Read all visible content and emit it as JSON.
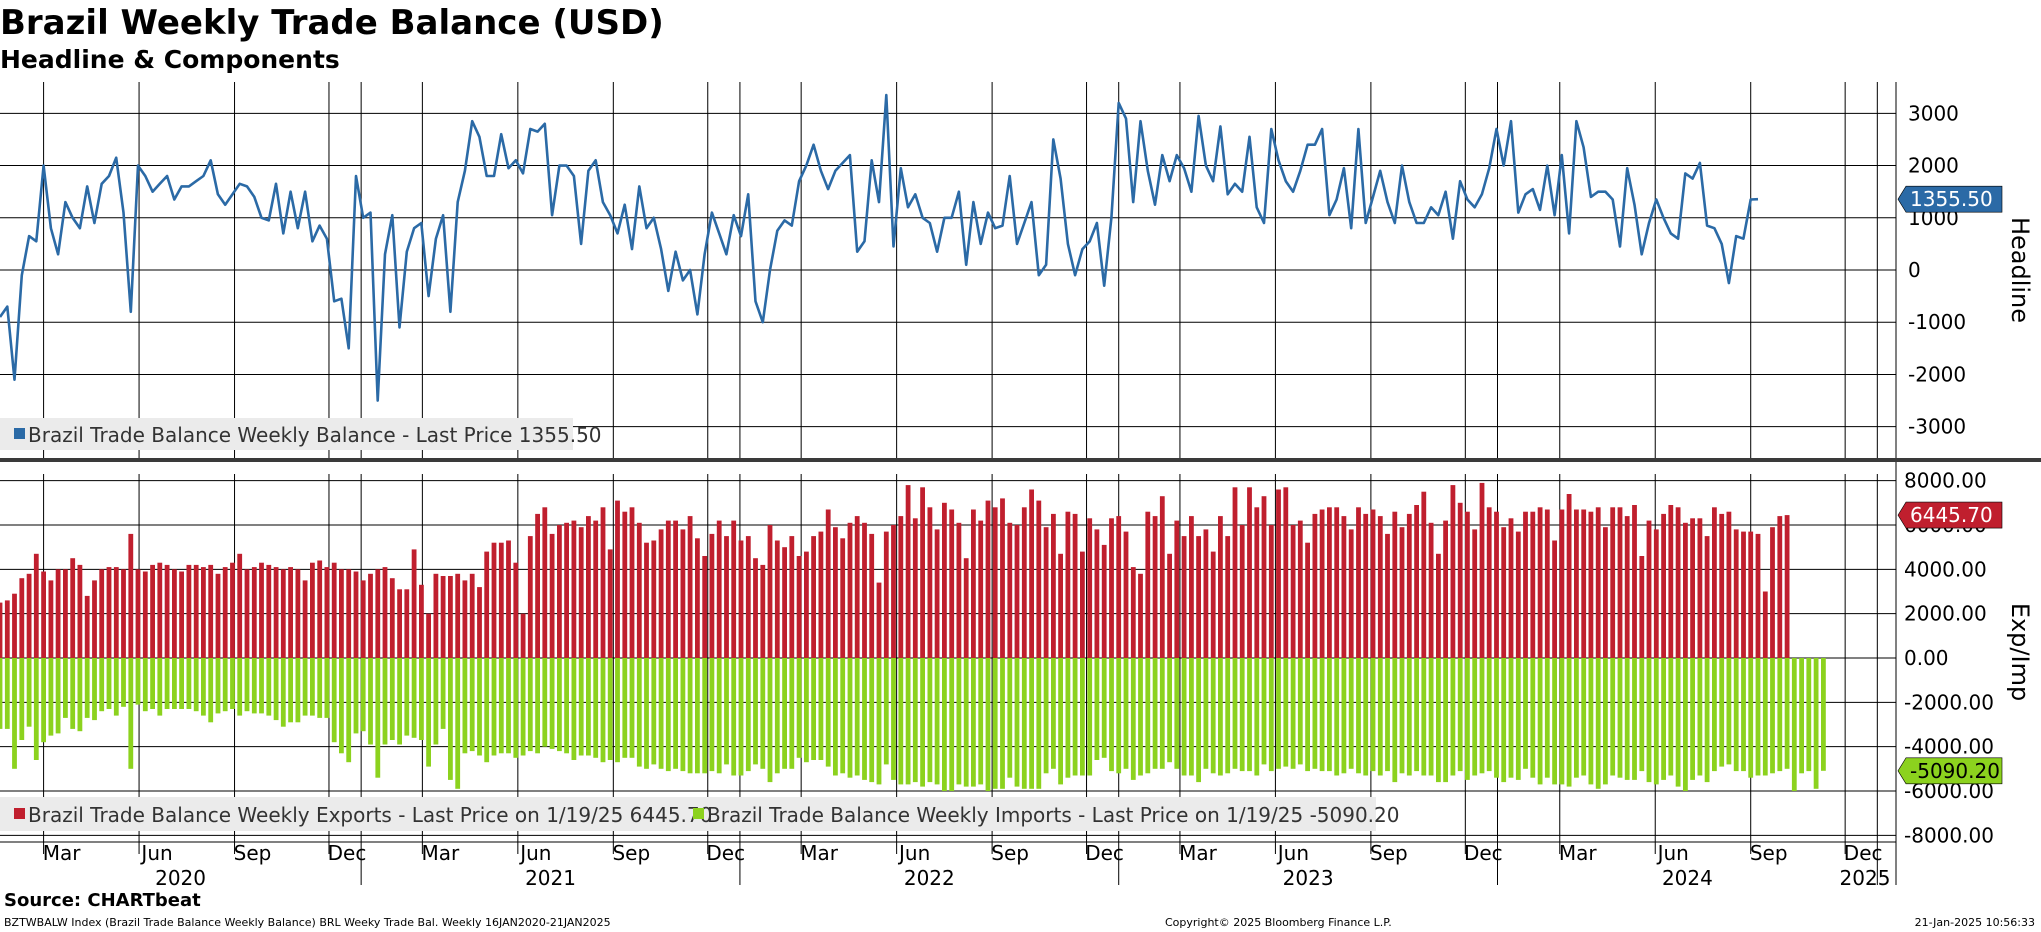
{
  "header": {
    "title": "Brazil Weekly Trade Balance (USD)",
    "subtitle": "Headline & Components"
  },
  "footer": {
    "source": "Source: CHARTbeat",
    "index_line": "BZTWBALW Index (Brazil Trade Balance Weekly Balance) BRL Weeky Trade Bal. Weekly 16JAN2020-21JAN2025",
    "copyright": "Copyright© 2025 Bloomberg Finance L.P.",
    "timestamp": "21-Jan-2025 10:56:33"
  },
  "colors": {
    "headline": "#2b6aa6",
    "exports": "#c01f2e",
    "imports": "#8cd21e",
    "grid": "#000000",
    "legend_bg": "#ebebeb"
  },
  "chart_data": [
    {
      "type": "line",
      "title": "Headline",
      "ylabel": "Headline",
      "ylim": [
        -3600,
        3600
      ],
      "yticks": [
        3000,
        2000,
        1000,
        0,
        -1000,
        -2000,
        -3000
      ],
      "x_start": "2020-01-19",
      "x_end": "2025-01-19",
      "x_step": "weekly",
      "last_value_label": "1355.50",
      "legend": [
        "Brazil Trade Balance Weekly Balance - Last Price 1355.50"
      ],
      "legend_placement": "bottom-left",
      "grid": true,
      "series": [
        {
          "name": "Brazil Trade Balance Weekly Balance",
          "values": [
            -900,
            -700,
            -2100,
            -100,
            650,
            550,
            2000,
            800,
            300,
            1300,
            1000,
            800,
            1600,
            900,
            1650,
            1800,
            2150,
            1100,
            -800,
            2000,
            1800,
            1500,
            1650,
            1800,
            1350,
            1600,
            1600,
            1700,
            1800,
            2100,
            1450,
            1250,
            1450,
            1650,
            1600,
            1400,
            1000,
            950,
            1650,
            700,
            1500,
            800,
            1500,
            550,
            850,
            600,
            -600,
            -550,
            -1500,
            1800,
            1000,
            1100,
            -2500,
            300,
            1050,
            -1100,
            350,
            800,
            900,
            -500,
            600,
            1050,
            -800,
            1300,
            1900,
            2850,
            2550,
            1800,
            1800,
            2600,
            1950,
            2100,
            1850,
            2700,
            2650,
            2800,
            1050,
            2000,
            2000,
            1800,
            500,
            1900,
            2100,
            1300,
            1050,
            700,
            1250,
            400,
            1600,
            800,
            1000,
            400,
            -400,
            350,
            -200,
            0,
            -850,
            300,
            1100,
            700,
            300,
            1050,
            650,
            1450,
            -600,
            -1000,
            0,
            750,
            950,
            850,
            1700,
            2000,
            2400,
            1900,
            1550,
            1900,
            2050,
            2200,
            350,
            550,
            2100,
            1300,
            3350,
            450,
            1950,
            1200,
            1450,
            1000,
            900,
            350,
            1000,
            1000,
            1500,
            100,
            1300,
            500,
            1100,
            800,
            850,
            1800,
            500,
            900,
            1300,
            -100,
            100,
            2500,
            1750,
            500,
            -100,
            400,
            550,
            900,
            -300,
            1000,
            3200,
            2900,
            1300,
            2850,
            1900,
            1250,
            2200,
            1700,
            2200,
            1950,
            1500,
            2950,
            2000,
            1700,
            2750,
            1450,
            1650,
            1500,
            2550,
            1200,
            900,
            2700,
            2100,
            1700,
            1500,
            1900,
            2400,
            2400,
            2700,
            1050,
            1350,
            1950,
            800,
            2700,
            900,
            1400,
            1900,
            1300,
            900,
            2000,
            1300,
            900,
            900,
            1200,
            1050,
            1500,
            600,
            1700,
            1350,
            1200,
            1450,
            1950,
            2700,
            2000,
            2850,
            1100,
            1450,
            1550,
            1150,
            2000,
            1050,
            2200,
            700,
            2850,
            2350,
            1400,
            1500,
            1500,
            1350,
            450,
            1950,
            1250,
            300,
            900,
            1350,
            1000,
            700,
            600,
            1850,
            1750,
            2050,
            850,
            800,
            500,
            -250,
            650,
            600,
            1350,
            1355.5
          ]
        }
      ]
    },
    {
      "type": "bar",
      "title": "Exp/Imp",
      "ylabel": "Exp/Imp",
      "ylim": [
        -8300,
        8300
      ],
      "yticks": [
        8000,
        6000,
        4000,
        2000,
        0,
        -2000,
        -4000,
        -6000,
        -8000
      ],
      "x_start": "2020-01-19",
      "x_end": "2025-01-19",
      "x_step": "weekly",
      "last_value_labels": {
        "exports": "6445.70",
        "imports": "-5090.20"
      },
      "legend": [
        "Brazil Trade Balance Weekly Exports - Last Price on 1/19/25 6445.70",
        "Brazil Trade Balance Weekly Imports - Last Price on 1/19/25 -5090.20"
      ],
      "legend_placement": "bottom-left",
      "x_month_labels": [
        "Mar",
        "Jun",
        "Sep",
        "Dec",
        "Mar",
        "Jun",
        "Sep",
        "Dec",
        "Mar",
        "Jun",
        "Sep",
        "Dec",
        "Mar",
        "Jun",
        "Sep",
        "Dec",
        "Mar",
        "Jun",
        "Sep",
        "Dec"
      ],
      "x_year_labels": [
        "2020",
        "2021",
        "2022",
        "2023",
        "2024",
        "2025"
      ],
      "grid": true,
      "series": [
        {
          "name": "Brazil Trade Balance Weekly Exports",
          "values": [
            2500,
            2600,
            2900,
            3600,
            3800,
            4700,
            3900,
            3500,
            4000,
            4000,
            4500,
            4200,
            2800,
            3500,
            4000,
            4100,
            4100,
            4000,
            5600,
            4000,
            3900,
            4200,
            4300,
            4200,
            4000,
            3900,
            4200,
            4200,
            4100,
            4200,
            3800,
            4100,
            4300,
            4700,
            4000,
            4100,
            4300,
            4200,
            4100,
            4000,
            4100,
            4000,
            3500,
            4300,
            4400,
            4100,
            4300,
            4000,
            4000,
            3900,
            3500,
            3800,
            4000,
            4100,
            3600,
            3100,
            3100,
            4900,
            3300,
            2000,
            3800,
            3700,
            3700,
            3800,
            3500,
            3800,
            3200,
            4800,
            5200,
            5200,
            5300,
            4300,
            2000,
            5500,
            6500,
            6800,
            5600,
            6000,
            6100,
            6200,
            5900,
            6400,
            6200,
            6800,
            4900,
            7100,
            6600,
            6800,
            6100,
            5200,
            5300,
            5800,
            6200,
            6200,
            5800,
            6400,
            5400,
            4600,
            5600,
            6200,
            5500,
            6200,
            5300,
            5500,
            4500,
            4200,
            6000,
            5300,
            5000,
            5500,
            4600,
            4800,
            5500,
            5700,
            6700,
            5900,
            5400,
            6100,
            6400,
            6100,
            5600,
            3400,
            5700,
            6000,
            6400,
            7800,
            6300,
            7700,
            6800,
            5800,
            7000,
            6700,
            6100,
            4500,
            6700,
            6200,
            7100,
            6800,
            7200,
            6100,
            6000,
            6800,
            7600,
            7100,
            5900,
            6500,
            4700,
            6600,
            6500,
            4800,
            6300,
            5800,
            5100,
            6300,
            6400,
            5700,
            4100,
            3800,
            6600,
            6400,
            7300,
            4700,
            6200,
            5500,
            6400,
            5500,
            5800,
            4800,
            6400,
            5500,
            7700,
            6000,
            7700,
            6800,
            7300,
            6000,
            7600,
            7700,
            6000,
            6200,
            5200,
            6500,
            6700,
            6800,
            6800,
            6400,
            5800,
            6800,
            6500,
            6700,
            6400,
            5600,
            6600,
            5900,
            6500,
            6900,
            7500,
            6100,
            4700,
            6200,
            7800,
            7000,
            6600,
            5800,
            7900,
            6800,
            6600,
            5900,
            6300,
            5700,
            6600,
            6600,
            6800,
            6700,
            5300,
            6700,
            7400,
            6700,
            6700,
            6600,
            6800,
            5900,
            6800,
            6800,
            6400,
            6900,
            4600,
            6200,
            5800,
            6500,
            6900,
            6800,
            6100,
            6300,
            6300,
            5500,
            6800,
            6500,
            6600,
            5800,
            5700,
            5700,
            5600,
            3000,
            5900,
            6400,
            6445.7
          ]
        },
        {
          "name": "Brazil Trade Balance Weekly Imports",
          "values": [
            -3200,
            -3200,
            -5000,
            -3700,
            -3100,
            -4600,
            -3800,
            -3500,
            -3400,
            -2700,
            -3200,
            -3300,
            -2700,
            -2800,
            -2400,
            -2300,
            -2600,
            -2200,
            -5000,
            -2100,
            -2400,
            -2300,
            -2600,
            -2300,
            -2300,
            -2300,
            -2300,
            -2400,
            -2600,
            -2900,
            -2500,
            -2400,
            -2300,
            -2600,
            -2400,
            -2500,
            -2500,
            -2600,
            -2800,
            -3100,
            -2900,
            -2900,
            -2600,
            -2600,
            -2700,
            -2700,
            -3800,
            -4300,
            -4700,
            -3400,
            -3300,
            -3900,
            -5400,
            -3900,
            -3700,
            -3900,
            -3500,
            -3600,
            -3700,
            -4900,
            -3900,
            -3200,
            -5500,
            -5900,
            -4300,
            -4200,
            -4400,
            -4700,
            -4400,
            -4300,
            -4300,
            -4500,
            -4400,
            -4200,
            -4300,
            -4000,
            -4100,
            -4200,
            -4300,
            -4600,
            -4400,
            -4400,
            -4500,
            -4700,
            -4600,
            -4700,
            -4500,
            -4500,
            -4900,
            -5000,
            -4800,
            -5000,
            -5100,
            -5000,
            -5100,
            -5200,
            -5200,
            -5200,
            -5100,
            -5200,
            -4800,
            -5300,
            -5300,
            -5100,
            -4800,
            -5000,
            -5600,
            -5200,
            -5000,
            -5000,
            -4500,
            -4700,
            -4600,
            -4600,
            -4900,
            -5300,
            -5200,
            -5400,
            -5300,
            -5500,
            -5600,
            -5700,
            -4800,
            -5500,
            -5700,
            -5700,
            -5600,
            -5800,
            -5600,
            -5700,
            -6000,
            -6000,
            -5700,
            -5800,
            -5800,
            -5700,
            -6000,
            -5900,
            -5900,
            -5400,
            -5800,
            -5900,
            -5900,
            -5900,
            -5200,
            -5000,
            -5700,
            -5400,
            -5300,
            -5300,
            -5300,
            -4600,
            -4500,
            -5100,
            -5200,
            -5000,
            -5500,
            -5300,
            -5200,
            -5000,
            -5000,
            -4700,
            -5000,
            -5300,
            -5300,
            -5600,
            -5000,
            -5200,
            -5300,
            -5200,
            -5000,
            -5100,
            -5100,
            -5300,
            -4800,
            -5100,
            -5000,
            -4900,
            -5000,
            -4800,
            -5100,
            -5000,
            -5100,
            -5100,
            -5300,
            -5200,
            -5000,
            -5200,
            -5300,
            -5100,
            -5300,
            -5100,
            -5600,
            -5200,
            -5300,
            -5100,
            -5300,
            -5300,
            -5600,
            -5600,
            -5300,
            -5100,
            -5500,
            -5300,
            -5200,
            -5100,
            -5400,
            -5600,
            -5400,
            -5500,
            -5000,
            -5400,
            -5700,
            -5400,
            -5700,
            -5700,
            -5800,
            -5400,
            -5300,
            -5700,
            -5900,
            -5700,
            -5300,
            -5400,
            -5500,
            -5500,
            -5100,
            -5600,
            -5700,
            -5500,
            -5300,
            -5800,
            -6000,
            -5500,
            -5300,
            -5600,
            -5100,
            -4900,
            -4800,
            -5100,
            -5100,
            -5400,
            -5300,
            -5300,
            -5200,
            -5100,
            -5000,
            -6000,
            -5200,
            -5100,
            -5900,
            -5090.2
          ]
        }
      ]
    }
  ]
}
